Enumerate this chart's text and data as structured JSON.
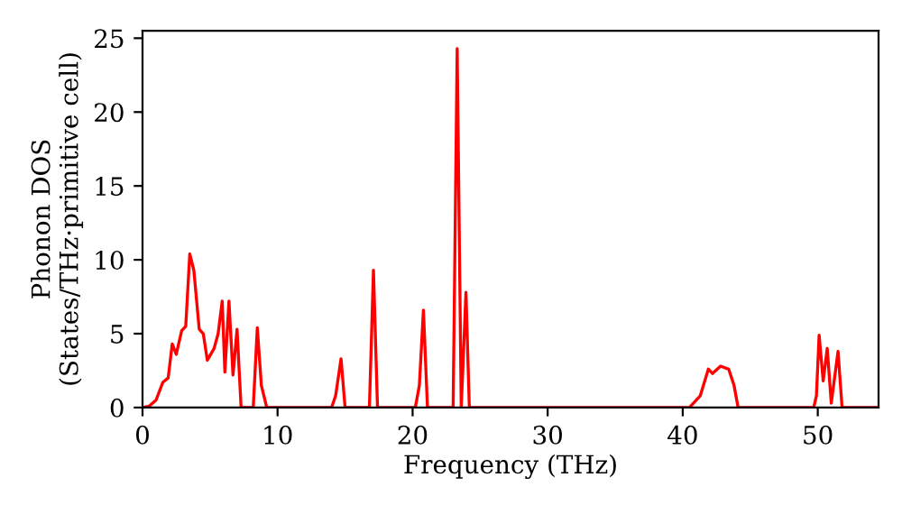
{
  "chart_data": {
    "type": "line",
    "xlabel": "Frequency (THz)",
    "ylabel": "Phonon DOS\n(States/THz·primitive cell)",
    "xlim": [
      0,
      54.5
    ],
    "ylim": [
      0,
      25.5
    ],
    "xticks": [
      0,
      10,
      20,
      30,
      40,
      50
    ],
    "yticks": [
      0,
      5,
      10,
      15,
      20,
      25
    ],
    "grid": false,
    "marker": "none",
    "line_style": "solid",
    "series": [
      {
        "color": "#ff0000",
        "x": [
          0,
          0.5,
          1,
          1.5,
          1.9,
          2.2,
          2.5,
          2.9,
          3.2,
          3.5,
          3.8,
          4.2,
          4.5,
          4.8,
          5.3,
          5.6,
          5.9,
          6.1,
          6.4,
          6.7,
          7.0,
          7.3,
          8.2,
          8.5,
          8.8,
          9.2,
          14.0,
          14.3,
          14.7,
          15.0,
          16.8,
          17.1,
          17.4,
          20.2,
          20.5,
          20.8,
          21.1,
          23.0,
          23.3,
          23.6,
          23.95,
          24.2,
          40.5,
          41.3,
          41.9,
          42.2,
          42.8,
          43.4,
          43.8,
          44.1,
          49.7,
          49.9,
          50.1,
          50.4,
          50.7,
          51.0,
          51.5,
          51.8,
          54.5
        ],
        "values": [
          0,
          0.1,
          0.5,
          1.7,
          2.0,
          4.3,
          3.6,
          5.2,
          5.5,
          10.4,
          9.3,
          5.3,
          5.0,
          3.2,
          4.0,
          5.0,
          7.2,
          2.4,
          7.2,
          2.2,
          5.3,
          0,
          0,
          5.4,
          1.5,
          0,
          0,
          0.8,
          3.3,
          0,
          0,
          9.3,
          0,
          0,
          1.5,
          6.6,
          0,
          0,
          24.3,
          0,
          7.8,
          0,
          0,
          0.8,
          2.6,
          2.3,
          2.8,
          2.6,
          1.5,
          0,
          0,
          0.8,
          4.9,
          1.8,
          4.0,
          0.3,
          3.8,
          0,
          0
        ]
      }
    ]
  }
}
